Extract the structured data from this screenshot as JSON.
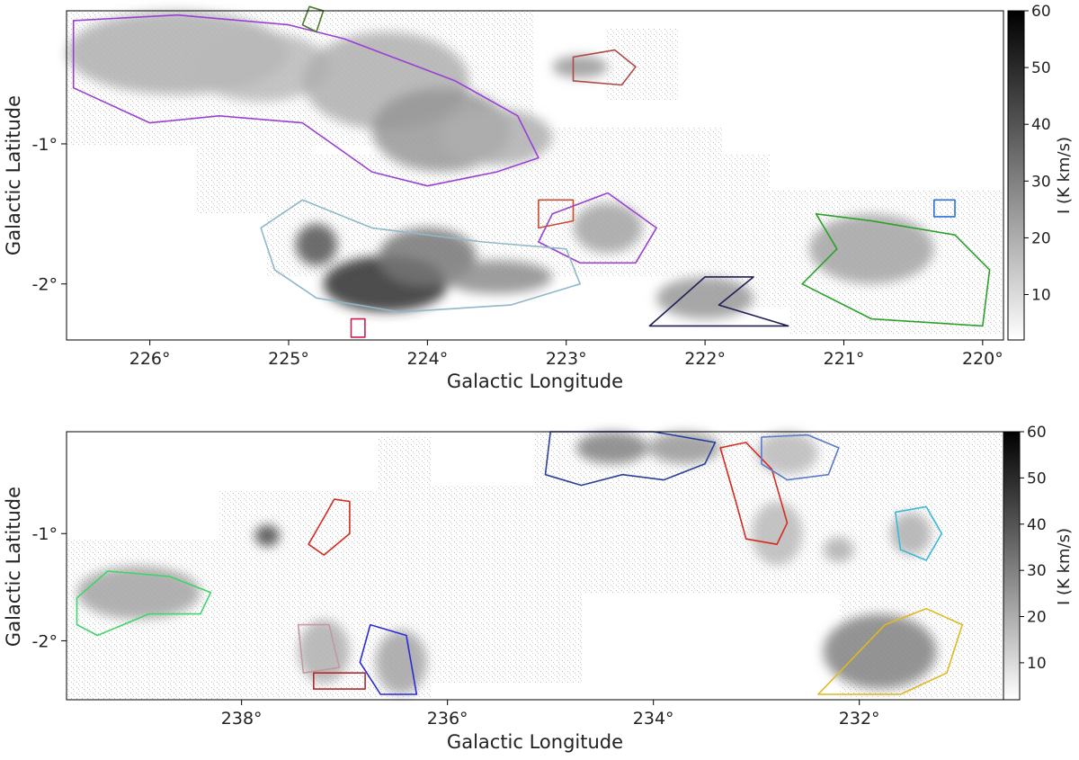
{
  "chart_data": [
    {
      "type": "heatmap",
      "panel": "top",
      "xlabel": "Galactic Longitude",
      "ylabel": "Galactic Latitude",
      "xlim": [
        226.6,
        219.85
      ],
      "ylim": [
        -2.4,
        -0.05
      ],
      "x_ticks": [
        226,
        225,
        224,
        223,
        222,
        221,
        220
      ],
      "x_tick_labels": [
        "226°",
        "225°",
        "224°",
        "223°",
        "222°",
        "221°",
        "220°"
      ],
      "y_ticks": [
        -1,
        -2
      ],
      "y_tick_labels": [
        "-1°",
        "-2°"
      ],
      "colorbar": {
        "label": "I (K km/s)",
        "range": [
          2,
          60
        ],
        "ticks": [
          10,
          20,
          30,
          40,
          50,
          60
        ],
        "tick_labels": [
          "10",
          "20",
          "30",
          "40",
          "50",
          "60"
        ],
        "colormap": "greys"
      },
      "emission": [
        {
          "l": 225.8,
          "b": -0.35,
          "rl": 0.8,
          "rb": 0.3,
          "i": 0.35
        },
        {
          "l": 225.2,
          "b": -0.45,
          "rl": 0.5,
          "rb": 0.25,
          "i": 0.3
        },
        {
          "l": 224.3,
          "b": -0.55,
          "rl": 0.6,
          "rb": 0.35,
          "i": 0.35
        },
        {
          "l": 223.9,
          "b": -0.9,
          "rl": 0.5,
          "rb": 0.3,
          "i": 0.45
        },
        {
          "l": 223.5,
          "b": -0.95,
          "rl": 0.4,
          "rb": 0.2,
          "i": 0.35
        },
        {
          "l": 224.3,
          "b": -2.0,
          "rl": 0.45,
          "rb": 0.2,
          "i": 0.9
        },
        {
          "l": 224.0,
          "b": -1.8,
          "rl": 0.35,
          "rb": 0.2,
          "i": 0.6
        },
        {
          "l": 223.5,
          "b": -1.95,
          "rl": 0.4,
          "rb": 0.12,
          "i": 0.5
        },
        {
          "l": 224.8,
          "b": -1.72,
          "rl": 0.15,
          "rb": 0.15,
          "i": 0.75
        },
        {
          "l": 222.7,
          "b": -1.6,
          "rl": 0.25,
          "rb": 0.18,
          "i": 0.4
        },
        {
          "l": 222.0,
          "b": -2.1,
          "rl": 0.35,
          "rb": 0.15,
          "i": 0.45
        },
        {
          "l": 220.8,
          "b": -1.75,
          "rl": 0.45,
          "rb": 0.25,
          "i": 0.4
        },
        {
          "l": 222.9,
          "b": -0.45,
          "rl": 0.2,
          "rb": 0.08,
          "i": 0.45
        }
      ],
      "contours": [
        {
          "color": "#9a3fd6",
          "points": [
            [
              226.55,
              -0.12
            ],
            [
              225.8,
              -0.08
            ],
            [
              225.0,
              -0.15
            ],
            [
              224.6,
              -0.25
            ],
            [
              224.2,
              -0.4
            ],
            [
              223.8,
              -0.55
            ],
            [
              223.35,
              -0.8
            ],
            [
              223.2,
              -1.1
            ],
            [
              223.5,
              -1.2
            ],
            [
              224.0,
              -1.3
            ],
            [
              224.4,
              -1.2
            ],
            [
              224.9,
              -0.85
            ],
            [
              225.5,
              -0.8
            ],
            [
              226.0,
              -0.85
            ],
            [
              226.55,
              -0.6
            ]
          ]
        },
        {
          "color": "#9a3fd6",
          "points": [
            [
              223.1,
              -1.5
            ],
            [
              222.7,
              -1.35
            ],
            [
              222.35,
              -1.6
            ],
            [
              222.5,
              -1.85
            ],
            [
              222.9,
              -1.85
            ],
            [
              223.2,
              -1.7
            ]
          ]
        },
        {
          "color": "#8fb8c8",
          "points": [
            [
              225.2,
              -1.6
            ],
            [
              224.9,
              -1.4
            ],
            [
              224.4,
              -1.6
            ],
            [
              223.6,
              -1.7
            ],
            [
              223.0,
              -1.75
            ],
            [
              222.9,
              -2.0
            ],
            [
              223.4,
              -2.15
            ],
            [
              224.2,
              -2.2
            ],
            [
              224.8,
              -2.1
            ],
            [
              225.1,
              -1.9
            ]
          ]
        },
        {
          "color": "#1f1f55",
          "points": [
            [
              222.4,
              -2.3
            ],
            [
              222.0,
              -1.95
            ],
            [
              221.65,
              -1.95
            ],
            [
              221.9,
              -2.15
            ],
            [
              221.4,
              -2.3
            ]
          ]
        },
        {
          "color": "#2aa12a",
          "points": [
            [
              221.2,
              -1.5
            ],
            [
              220.8,
              -1.55
            ],
            [
              220.2,
              -1.65
            ],
            [
              219.95,
              -1.9
            ],
            [
              220.0,
              -2.3
            ],
            [
              220.8,
              -2.25
            ],
            [
              221.3,
              -2.0
            ],
            [
              221.05,
              -1.75
            ]
          ]
        },
        {
          "color": "#b04848",
          "points": [
            [
              222.95,
              -0.38
            ],
            [
              222.65,
              -0.33
            ],
            [
              222.5,
              -0.45
            ],
            [
              222.6,
              -0.58
            ],
            [
              222.95,
              -0.55
            ]
          ]
        },
        {
          "color": "#c94a2f",
          "points": [
            [
              223.2,
              -1.4
            ],
            [
              222.95,
              -1.4
            ],
            [
              222.95,
              -1.55
            ],
            [
              223.2,
              -1.6
            ]
          ]
        },
        {
          "color": "#4e7a2a",
          "points": [
            [
              224.85,
              -0.02
            ],
            [
              224.75,
              -0.05
            ],
            [
              224.8,
              -0.2
            ],
            [
              224.9,
              -0.15
            ]
          ]
        },
        {
          "color": "#c91f4f",
          "points": [
            [
              224.55,
              -2.25
            ],
            [
              224.45,
              -2.25
            ],
            [
              224.45,
              -2.38
            ],
            [
              224.55,
              -2.38
            ]
          ]
        },
        {
          "color": "#2a6fd6",
          "points": [
            [
              220.35,
              -1.4
            ],
            [
              220.2,
              -1.4
            ],
            [
              220.2,
              -1.52
            ],
            [
              220.35,
              -1.52
            ]
          ]
        }
      ]
    },
    {
      "type": "heatmap",
      "panel": "bottom",
      "xlabel": "Galactic Longitude",
      "ylabel": "Galactic Latitude",
      "xlim": [
        239.7,
        230.6
      ],
      "ylim": [
        -2.55,
        -0.05
      ],
      "x_ticks": [
        238,
        236,
        234,
        232
      ],
      "x_tick_labels": [
        "238°",
        "236°",
        "234°",
        "232°"
      ],
      "y_ticks": [
        -1,
        -2
      ],
      "y_tick_labels": [
        "-1°",
        "-2°"
      ],
      "colorbar": {
        "label": "I (K km/s)",
        "range": [
          2,
          60
        ],
        "ticks": [
          10,
          20,
          30,
          40,
          50,
          60
        ],
        "tick_labels": [
          "10",
          "20",
          "30",
          "40",
          "50",
          "60"
        ],
        "colormap": "greys"
      },
      "emission": [
        {
          "l": 239.0,
          "b": -1.55,
          "rl": 0.6,
          "rb": 0.25,
          "i": 0.4
        },
        {
          "l": 237.75,
          "b": -1.02,
          "rl": 0.12,
          "rb": 0.1,
          "i": 0.8
        },
        {
          "l": 237.2,
          "b": -2.1,
          "rl": 0.25,
          "rb": 0.3,
          "i": 0.35
        },
        {
          "l": 236.45,
          "b": -2.2,
          "rl": 0.25,
          "rb": 0.3,
          "i": 0.4
        },
        {
          "l": 234.4,
          "b": -0.2,
          "rl": 0.35,
          "rb": 0.15,
          "i": 0.55
        },
        {
          "l": 233.7,
          "b": -0.2,
          "rl": 0.35,
          "rb": 0.15,
          "i": 0.45
        },
        {
          "l": 232.7,
          "b": -0.25,
          "rl": 0.3,
          "rb": 0.2,
          "i": 0.3
        },
        {
          "l": 232.8,
          "b": -1.0,
          "rl": 0.25,
          "rb": 0.3,
          "i": 0.3
        },
        {
          "l": 231.8,
          "b": -2.1,
          "rl": 0.55,
          "rb": 0.35,
          "i": 0.55
        },
        {
          "l": 231.5,
          "b": -1.0,
          "rl": 0.2,
          "rb": 0.2,
          "i": 0.35
        },
        {
          "l": 232.2,
          "b": -1.15,
          "rl": 0.15,
          "rb": 0.12,
          "i": 0.35
        }
      ],
      "contours": [
        {
          "color": "#3ed46a",
          "points": [
            [
              239.6,
              -1.6
            ],
            [
              239.3,
              -1.35
            ],
            [
              238.7,
              -1.4
            ],
            [
              238.3,
              -1.55
            ],
            [
              238.4,
              -1.75
            ],
            [
              238.9,
              -1.75
            ],
            [
              239.4,
              -1.95
            ],
            [
              239.6,
              -1.85
            ]
          ]
        },
        {
          "color": "#2a3f9a",
          "points": [
            [
              235.0,
              -0.05
            ],
            [
              234.0,
              -0.05
            ],
            [
              233.4,
              -0.15
            ],
            [
              233.5,
              -0.35
            ],
            [
              233.9,
              -0.5
            ],
            [
              234.3,
              -0.45
            ],
            [
              234.7,
              -0.55
            ],
            [
              235.05,
              -0.45
            ]
          ]
        },
        {
          "color": "#d42a1f",
          "points": [
            [
              233.35,
              -0.2
            ],
            [
              233.1,
              -0.15
            ],
            [
              232.85,
              -0.4
            ],
            [
              232.7,
              -0.9
            ],
            [
              232.8,
              -1.1
            ],
            [
              233.1,
              -1.05
            ],
            [
              233.2,
              -0.7
            ]
          ]
        },
        {
          "color": "#5a7ac8",
          "points": [
            [
              232.95,
              -0.1
            ],
            [
              232.5,
              -0.08
            ],
            [
              232.2,
              -0.2
            ],
            [
              232.3,
              -0.45
            ],
            [
              232.7,
              -0.5
            ],
            [
              232.95,
              -0.35
            ]
          ]
        },
        {
          "color": "#e0b820",
          "points": [
            [
              232.4,
              -2.5
            ],
            [
              232.1,
              -2.2
            ],
            [
              231.75,
              -1.85
            ],
            [
              231.35,
              -1.7
            ],
            [
              231.0,
              -1.85
            ],
            [
              231.15,
              -2.3
            ],
            [
              231.6,
              -2.5
            ]
          ]
        },
        {
          "color": "#3ab8d8",
          "points": [
            [
              231.65,
              -0.8
            ],
            [
              231.35,
              -0.75
            ],
            [
              231.2,
              -1.0
            ],
            [
              231.35,
              -1.25
            ],
            [
              231.6,
              -1.15
            ]
          ]
        },
        {
          "color": "#d42a1f",
          "points": [
            [
              237.1,
              -0.68
            ],
            [
              236.95,
              -0.7
            ],
            [
              236.95,
              -1.0
            ],
            [
              237.2,
              -1.2
            ],
            [
              237.35,
              -1.1
            ],
            [
              237.2,
              -0.85
            ]
          ]
        },
        {
          "color": "#2a2ad8",
          "points": [
            [
              236.75,
              -1.85
            ],
            [
              236.4,
              -1.95
            ],
            [
              236.3,
              -2.5
            ],
            [
              236.65,
              -2.5
            ],
            [
              236.85,
              -2.2
            ]
          ]
        },
        {
          "color": "#b02a2a",
          "points": [
            [
              237.3,
              -2.3
            ],
            [
              236.8,
              -2.3
            ],
            [
              236.8,
              -2.45
            ],
            [
              237.3,
              -2.45
            ]
          ]
        },
        {
          "color": "#c09aa0",
          "points": [
            [
              237.45,
              -1.85
            ],
            [
              237.15,
              -1.85
            ],
            [
              237.05,
              -2.25
            ],
            [
              237.4,
              -2.3
            ]
          ]
        }
      ]
    }
  ]
}
